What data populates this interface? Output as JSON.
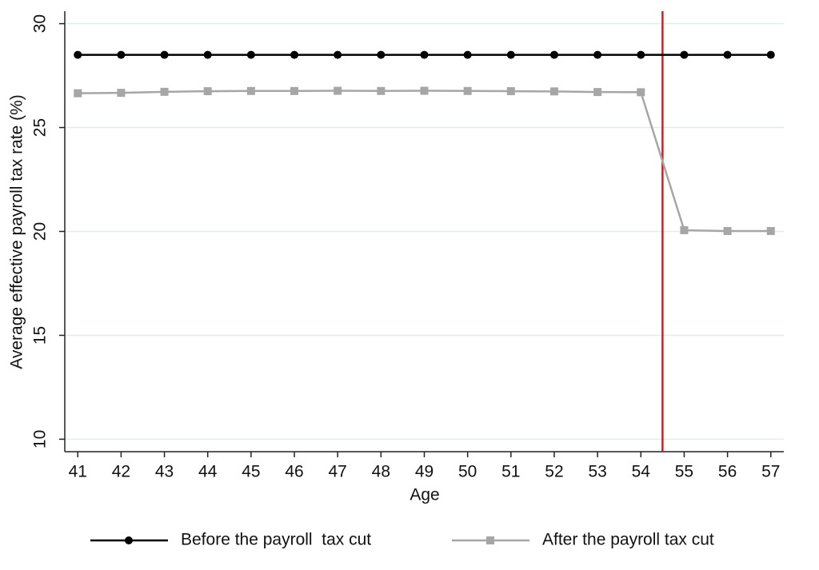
{
  "chart_data": {
    "type": "line",
    "x_label": "Age",
    "y_label": "Average effective payroll tax rate (%)",
    "x": [
      41,
      42,
      43,
      44,
      45,
      46,
      47,
      48,
      49,
      50,
      51,
      52,
      53,
      54,
      55,
      56,
      57
    ],
    "series": [
      {
        "name": "Before the payroll  tax cut",
        "color": "#000000",
        "marker": "circle",
        "values": [
          28.5,
          28.5,
          28.5,
          28.5,
          28.5,
          28.5,
          28.5,
          28.5,
          28.5,
          28.5,
          28.5,
          28.5,
          28.5,
          28.5,
          28.5,
          28.5,
          28.5
        ]
      },
      {
        "name": "After the payroll tax cut",
        "color": "#a6a6a6",
        "marker": "square",
        "values": [
          26.65,
          26.67,
          26.72,
          26.75,
          26.76,
          26.76,
          26.77,
          26.76,
          26.77,
          26.76,
          26.75,
          26.74,
          26.71,
          26.7,
          20.06,
          20.02,
          20.02
        ]
      }
    ],
    "xlim": [
      40.7,
      57.3
    ],
    "xticks": [
      41,
      42,
      43,
      44,
      45,
      46,
      47,
      48,
      49,
      50,
      51,
      52,
      53,
      54,
      55,
      56,
      57
    ],
    "ylim": [
      9.4,
      30.6
    ],
    "yticks": [
      10,
      15,
      20,
      25,
      30
    ],
    "grid": true,
    "vline": {
      "value": 54.5,
      "color": "#e8141c"
    },
    "legend": "bottom"
  }
}
